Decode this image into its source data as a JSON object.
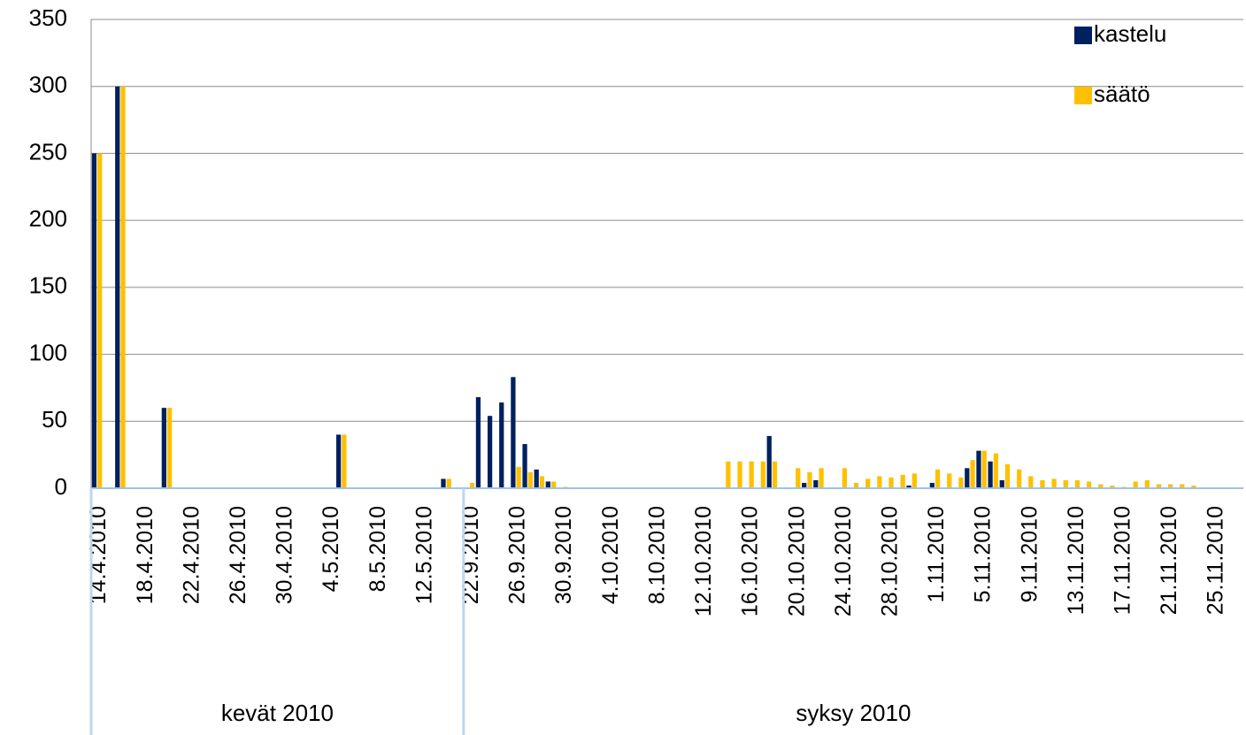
{
  "chart_data": {
    "type": "bar",
    "groups": [
      {
        "label": "kevät 2010",
        "categories": [
          "14.4.2010",
          null,
          null,
          null,
          "18.4.2010",
          null,
          null,
          null,
          "22.4.2010",
          null,
          null,
          null,
          "26.4.2010",
          null,
          null,
          null,
          "30.4.2010",
          null,
          null,
          null,
          "4.5.2010",
          null,
          null,
          null,
          "8.5.2010",
          null,
          null,
          null,
          "12.5.2010",
          null,
          null,
          null
        ]
      },
      {
        "label": "syksy 2010",
        "categories": [
          "22.9.2010",
          null,
          null,
          null,
          "26.9.2010",
          null,
          null,
          null,
          "30.9.2010",
          null,
          null,
          null,
          "4.10.2010",
          null,
          null,
          null,
          "8.10.2010",
          null,
          null,
          null,
          "12.10.2010",
          null,
          null,
          null,
          "16.10.2010",
          null,
          null,
          null,
          "20.10.2010",
          null,
          null,
          null,
          "24.10.2010",
          null,
          null,
          null,
          "28.10.2010",
          null,
          null,
          null,
          "1.11.2010",
          null,
          null,
          null,
          "5.11.2010",
          null,
          null,
          null,
          "9.11.2010",
          null,
          null,
          null,
          "13.11.2010",
          null,
          null,
          null,
          "17.11.2010",
          null,
          null,
          null,
          "21.11.2010",
          null,
          null,
          null,
          "25.11.2010",
          null,
          null
        ]
      }
    ],
    "series": [
      {
        "name": "kastelu",
        "color": "#002060",
        "values": [
          250,
          0,
          300,
          0,
          0,
          0,
          60,
          0,
          0,
          0,
          0,
          0,
          0,
          0,
          0,
          0,
          0,
          0,
          0,
          0,
          0,
          40,
          0,
          0,
          0,
          0,
          0,
          0,
          0,
          0,
          7,
          0,
          0,
          68,
          54,
          64,
          83,
          33,
          14,
          5,
          0,
          0,
          0,
          0,
          0,
          0,
          0,
          0,
          0,
          0,
          0,
          0,
          0,
          0,
          0,
          0,
          0,
          0,
          39,
          0,
          0,
          4,
          6,
          0,
          0,
          0,
          0,
          0,
          0,
          0,
          2,
          0,
          4,
          0,
          0,
          15,
          28,
          20,
          6,
          0,
          0,
          0,
          0,
          0,
          0,
          0,
          0,
          0,
          0,
          0,
          0,
          0,
          0,
          0,
          0,
          0,
          0,
          0,
          0
        ]
      },
      {
        "name": "säätö",
        "color": "#ffc000",
        "values": [
          250,
          0,
          300,
          0,
          0,
          0,
          60,
          0,
          0,
          0,
          0,
          0,
          0,
          0,
          0,
          0,
          0,
          0,
          0,
          0,
          0,
          40,
          0,
          0,
          0,
          0,
          0,
          0,
          0,
          0,
          7,
          0,
          4,
          0,
          0,
          0,
          16,
          12,
          9,
          5,
          1,
          0,
          0,
          0,
          0,
          0,
          0,
          0,
          0,
          0,
          0,
          0,
          0,
          0,
          20,
          20,
          20,
          20,
          20,
          0,
          15,
          12,
          15,
          0,
          15,
          4,
          7,
          9,
          8,
          10,
          11,
          0,
          14,
          11,
          8,
          21,
          28,
          26,
          18,
          14,
          9,
          6,
          7,
          6,
          6,
          5,
          3,
          2,
          1,
          5,
          6,
          3,
          3,
          3,
          2,
          0,
          0,
          0,
          0
        ]
      }
    ],
    "ylim": [
      0,
      350
    ],
    "yticks": [
      0,
      50,
      100,
      150,
      200,
      250,
      300,
      350
    ],
    "grid": true,
    "legend": "top-right"
  }
}
